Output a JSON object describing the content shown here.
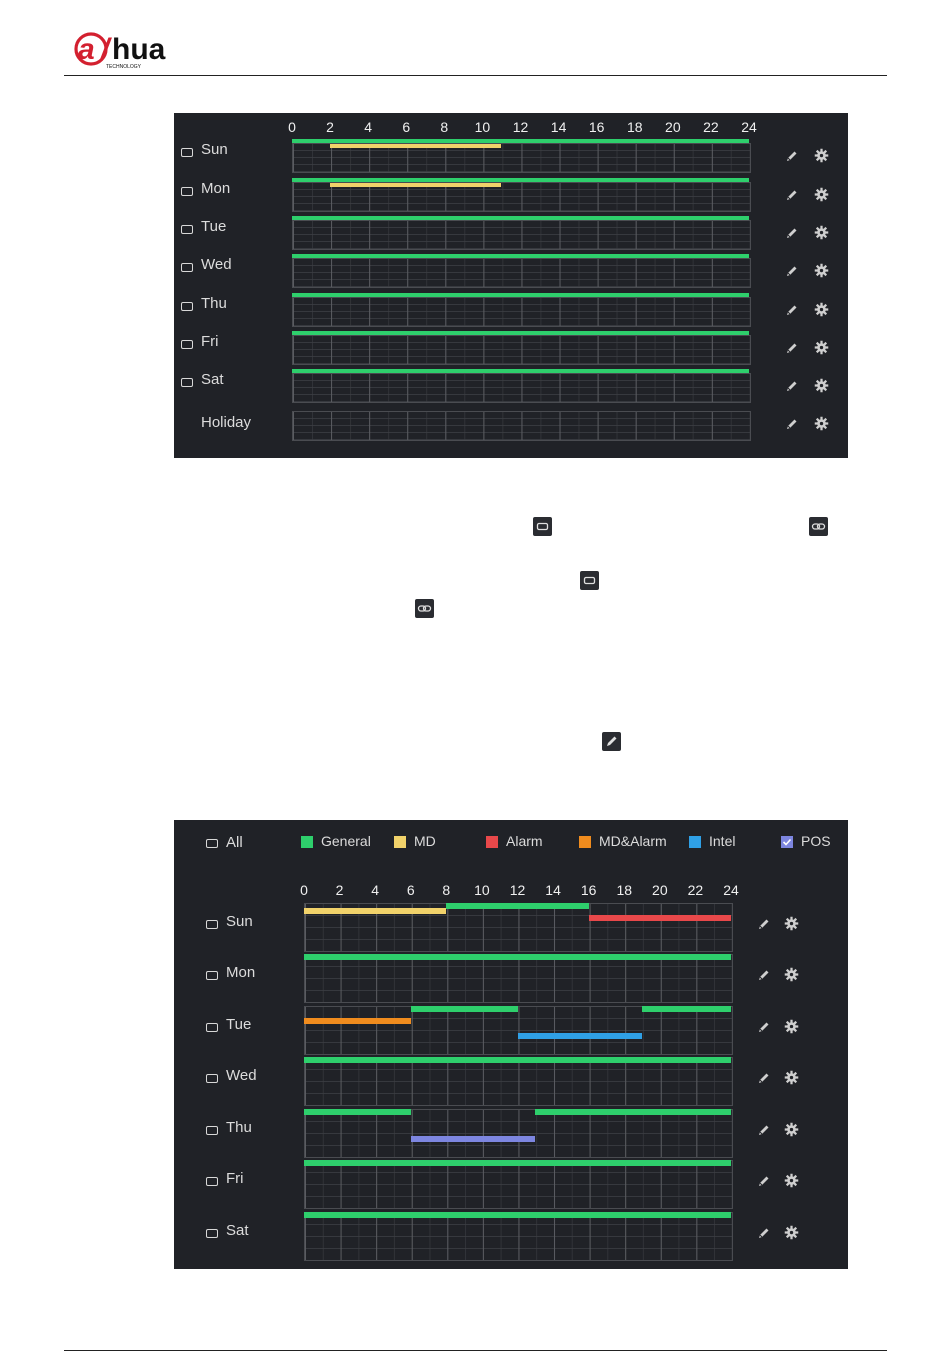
{
  "brand": {
    "logo_text": "alhua",
    "logo_subtext": "TECHNOLOGY"
  },
  "colors": {
    "brand_red": "#d3202f",
    "panel_bg": "#202227",
    "general": "#2ecf6c",
    "md": "#f1d26a",
    "alarm": "#e8484a",
    "md_alarm": "#f08c1e",
    "intel": "#2fa0e6",
    "pos": "#7d86e0"
  },
  "schedule1": {
    "hour_labels": [
      "0",
      "2",
      "4",
      "6",
      "8",
      "10",
      "12",
      "14",
      "16",
      "18",
      "20",
      "22",
      "24"
    ],
    "days": [
      {
        "name": "Sun",
        "checkbox": true,
        "bars": [
          {
            "type": "general",
            "start": 0,
            "end": 24,
            "lane": 0
          },
          {
            "type": "md",
            "start": 2,
            "end": 11,
            "lane": 1
          }
        ]
      },
      {
        "name": "Mon",
        "checkbox": true,
        "bars": [
          {
            "type": "general",
            "start": 0,
            "end": 24,
            "lane": 0
          },
          {
            "type": "md",
            "start": 2,
            "end": 11,
            "lane": 1
          }
        ]
      },
      {
        "name": "Tue",
        "checkbox": true,
        "bars": [
          {
            "type": "general",
            "start": 0,
            "end": 24,
            "lane": 0
          }
        ]
      },
      {
        "name": "Wed",
        "checkbox": true,
        "bars": [
          {
            "type": "general",
            "start": 0,
            "end": 24,
            "lane": 0
          }
        ]
      },
      {
        "name": "Thu",
        "checkbox": true,
        "bars": [
          {
            "type": "general",
            "start": 0,
            "end": 24,
            "lane": 0
          }
        ]
      },
      {
        "name": "Fri",
        "checkbox": true,
        "bars": [
          {
            "type": "general",
            "start": 0,
            "end": 24,
            "lane": 0
          }
        ]
      },
      {
        "name": "Sat",
        "checkbox": true,
        "bars": [
          {
            "type": "general",
            "start": 0,
            "end": 24,
            "lane": 0
          }
        ]
      },
      {
        "name": "Holiday",
        "checkbox": false,
        "bars": []
      }
    ]
  },
  "schedule2": {
    "all_label": "All",
    "legend": [
      {
        "key": "general",
        "label": "General",
        "checked": false
      },
      {
        "key": "md",
        "label": "MD",
        "checked": false
      },
      {
        "key": "alarm",
        "label": "Alarm",
        "checked": false
      },
      {
        "key": "md_alarm",
        "label": "MD&Alarm",
        "checked": false
      },
      {
        "key": "intel",
        "label": "Intel",
        "checked": false
      },
      {
        "key": "pos",
        "label": "POS",
        "checked": true
      }
    ],
    "hour_labels": [
      "0",
      "2",
      "4",
      "6",
      "8",
      "10",
      "12",
      "14",
      "16",
      "18",
      "20",
      "22",
      "24"
    ],
    "days": [
      {
        "name": "Sun",
        "bars": [
          {
            "type": "md",
            "start": 0,
            "end": 8,
            "lane": 1
          },
          {
            "type": "general",
            "start": 8,
            "end": 16,
            "lane": 0
          },
          {
            "type": "alarm",
            "start": 16,
            "end": 24,
            "lane": 2
          }
        ]
      },
      {
        "name": "Mon",
        "bars": [
          {
            "type": "general",
            "start": 0,
            "end": 24,
            "lane": 0
          }
        ]
      },
      {
        "name": "Tue",
        "bars": [
          {
            "type": "general",
            "start": 6,
            "end": 12,
            "lane": 0
          },
          {
            "type": "general",
            "start": 19,
            "end": 24,
            "lane": 0
          },
          {
            "type": "md_alarm",
            "start": 0,
            "end": 6,
            "lane": 2
          },
          {
            "type": "intel",
            "start": 12,
            "end": 19,
            "lane": 3
          }
        ]
      },
      {
        "name": "Wed",
        "bars": [
          {
            "type": "general",
            "start": 0,
            "end": 24,
            "lane": 0
          }
        ]
      },
      {
        "name": "Thu",
        "bars": [
          {
            "type": "general",
            "start": 0,
            "end": 6,
            "lane": 0
          },
          {
            "type": "general",
            "start": 13,
            "end": 24,
            "lane": 0
          },
          {
            "type": "pos",
            "start": 6,
            "end": 13,
            "lane": 3
          }
        ]
      },
      {
        "name": "Fri",
        "bars": [
          {
            "type": "general",
            "start": 0,
            "end": 24,
            "lane": 0
          }
        ]
      },
      {
        "name": "Sat",
        "bars": [
          {
            "type": "general",
            "start": 0,
            "end": 24,
            "lane": 0
          }
        ]
      }
    ]
  },
  "inline_icons": [
    {
      "name": "unlink-icon"
    },
    {
      "name": "link-icon"
    },
    {
      "name": "unlink-icon"
    },
    {
      "name": "link-icon"
    },
    {
      "name": "pencil-icon"
    }
  ]
}
